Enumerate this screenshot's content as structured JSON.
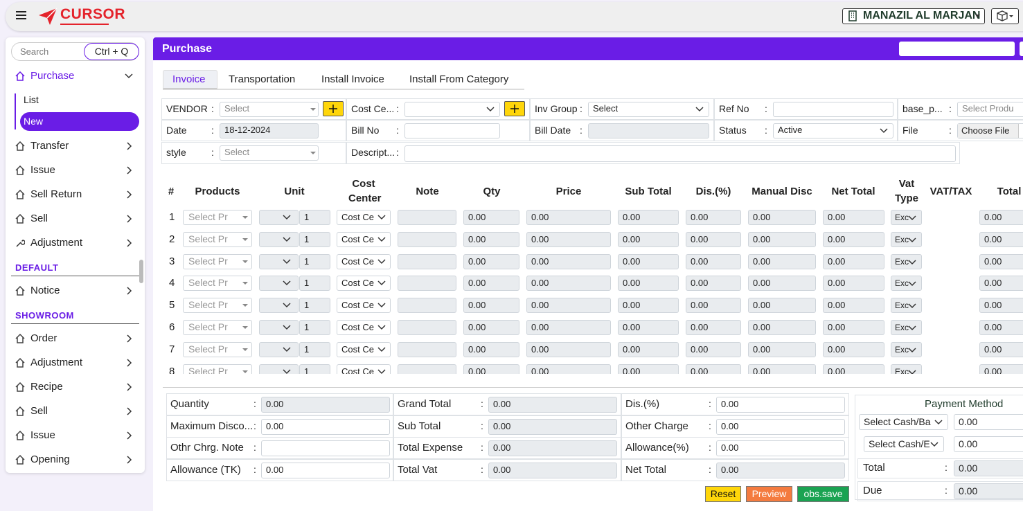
{
  "header": {
    "brand": "CURSOR",
    "company": "MANAZIL AL MARJAN"
  },
  "sidebar": {
    "search": "Search",
    "shortcut": "Ctrl + Q",
    "groups": [
      {
        "items": [
          "Purchase",
          "Transfer",
          "Issue",
          "Sell Return",
          "Sell",
          "Adjustment"
        ],
        "submenu": [
          "List",
          "New"
        ]
      },
      {
        "title": "DEFAULT",
        "items": [
          "Notice"
        ]
      },
      {
        "title": "SHOWROOM",
        "items": [
          "Order",
          "Adjustment",
          "Recipe",
          "Sell",
          "Issue",
          "Opening"
        ]
      }
    ]
  },
  "page": {
    "title": "Purchase",
    "tabs": [
      "Invoice",
      "Transportation",
      "Install Invoice",
      "Install From Category"
    ]
  },
  "form": {
    "rows": [
      [
        {
          "label": "VENDOR",
          "placeholder": "Select",
          "kind": "select",
          "plus": true
        },
        {
          "label": "Cost Ce...",
          "kind": "select",
          "plus": true
        },
        {
          "label": "Inv Group",
          "value": "Select",
          "kind": "select"
        },
        {
          "label": "Ref No",
          "kind": "input"
        },
        {
          "label": "base_p...",
          "placeholder": "Select Produ",
          "kind": "input"
        }
      ],
      [
        {
          "label": "Date",
          "value": "18-12-2024",
          "kind": "readonly"
        },
        {
          "label": "Bill No",
          "kind": "input"
        },
        {
          "label": "Bill Date",
          "kind": "readonly"
        },
        {
          "label": "Status",
          "value": "Active",
          "kind": "select"
        },
        {
          "label": "File",
          "value": "Choose File",
          "kind": "file"
        }
      ],
      [
        {
          "label": "style",
          "placeholder": "Select",
          "kind": "select"
        },
        {
          "label": "Descript...",
          "kind": "textarea"
        }
      ]
    ]
  },
  "table": {
    "headers": [
      "#",
      "Products",
      "Unit",
      "Cost Center",
      "Note",
      "Qty",
      "Price",
      "Sub Total",
      "Dis.(%)",
      "Manual Disc",
      "Net Total",
      "Vat Type",
      "VAT/TAX",
      "Total"
    ],
    "rows": [
      {
        "no": "1",
        "product": "Select Pr",
        "unit": "1",
        "cost_center": "Cost Ce",
        "values": [
          "0.00",
          "0.00",
          "0.00",
          "0.00",
          "0.00",
          "0.00"
        ],
        "vat": "Exc",
        "total": "0.00"
      },
      {
        "no": "2",
        "product": "Select Pr",
        "unit": "1",
        "cost_center": "Cost Ce",
        "values": [
          "0.00",
          "0.00",
          "0.00",
          "0.00",
          "0.00",
          "0.00"
        ],
        "vat": "Exc",
        "total": "0.00"
      },
      {
        "no": "3",
        "product": "Select Pr",
        "unit": "1",
        "cost_center": "Cost Ce",
        "values": [
          "0.00",
          "0.00",
          "0.00",
          "0.00",
          "0.00",
          "0.00"
        ],
        "vat": "Exc",
        "total": "0.00"
      },
      {
        "no": "4",
        "product": "Select Pr",
        "unit": "1",
        "cost_center": "Cost Ce",
        "values": [
          "0.00",
          "0.00",
          "0.00",
          "0.00",
          "0.00",
          "0.00"
        ],
        "vat": "Exc",
        "total": "0.00"
      },
      {
        "no": "5",
        "product": "Select Pr",
        "unit": "1",
        "cost_center": "Cost Ce",
        "values": [
          "0.00",
          "0.00",
          "0.00",
          "0.00",
          "0.00",
          "0.00"
        ],
        "vat": "Exc",
        "total": "0.00"
      },
      {
        "no": "6",
        "product": "Select Pr",
        "unit": "1",
        "cost_center": "Cost Ce",
        "values": [
          "0.00",
          "0.00",
          "0.00",
          "0.00",
          "0.00",
          "0.00"
        ],
        "vat": "Exc",
        "total": "0.00"
      },
      {
        "no": "7",
        "product": "Select Pr",
        "unit": "1",
        "cost_center": "Cost Ce",
        "values": [
          "0.00",
          "0.00",
          "0.00",
          "0.00",
          "0.00",
          "0.00"
        ],
        "vat": "Exc",
        "total": "0.00"
      },
      {
        "no": "8",
        "product": "Select Pr",
        "unit": "1",
        "cost_center": "Cost Ce",
        "values": [
          "0.00",
          "0.00",
          "0.00",
          "0.00",
          "0.00",
          "0.00"
        ],
        "vat": "Exc",
        "total": "0.00"
      }
    ]
  },
  "summary": {
    "columns": [
      [
        {
          "label": "Quantity",
          "value": "0.00",
          "kind": "readonly"
        },
        {
          "label": "Maximum Disco...",
          "value": "0.00",
          "kind": "input"
        },
        {
          "label": "Othr Chrg. Note",
          "kind": "input"
        },
        {
          "label": "Allowance (TK)",
          "value": "0.00",
          "kind": "input"
        }
      ],
      [
        {
          "label": "Grand Total",
          "value": "0.00",
          "kind": "readonly"
        },
        {
          "label": "Sub Total",
          "value": "0.00",
          "kind": "readonly"
        },
        {
          "label": "Total Expense",
          "value": "0.00",
          "kind": "readonly"
        },
        {
          "label": "Total Vat",
          "value": "0.00",
          "kind": "readonly"
        }
      ],
      [
        {
          "label": "Dis.(%)",
          "value": "0.00",
          "kind": "input"
        },
        {
          "label": "Other Charge",
          "value": "0.00",
          "kind": "input"
        },
        {
          "label": "Allowance(%)",
          "value": "0.00",
          "kind": "input"
        },
        {
          "label": "Net Total",
          "value": "0.00",
          "kind": "readonly"
        }
      ]
    ]
  },
  "payment": {
    "title": "Payment Method",
    "methods": [
      {
        "select": "Select Cash/Ba",
        "value": "0.00"
      },
      {
        "select": "Select Cash/E",
        "value": "0.00"
      }
    ],
    "totals": [
      {
        "label": "Total",
        "value": "0.00"
      },
      {
        "label": "Due",
        "value": "0.00"
      }
    ]
  },
  "buttons": [
    "Reset",
    "Preview",
    "obs.save"
  ]
}
